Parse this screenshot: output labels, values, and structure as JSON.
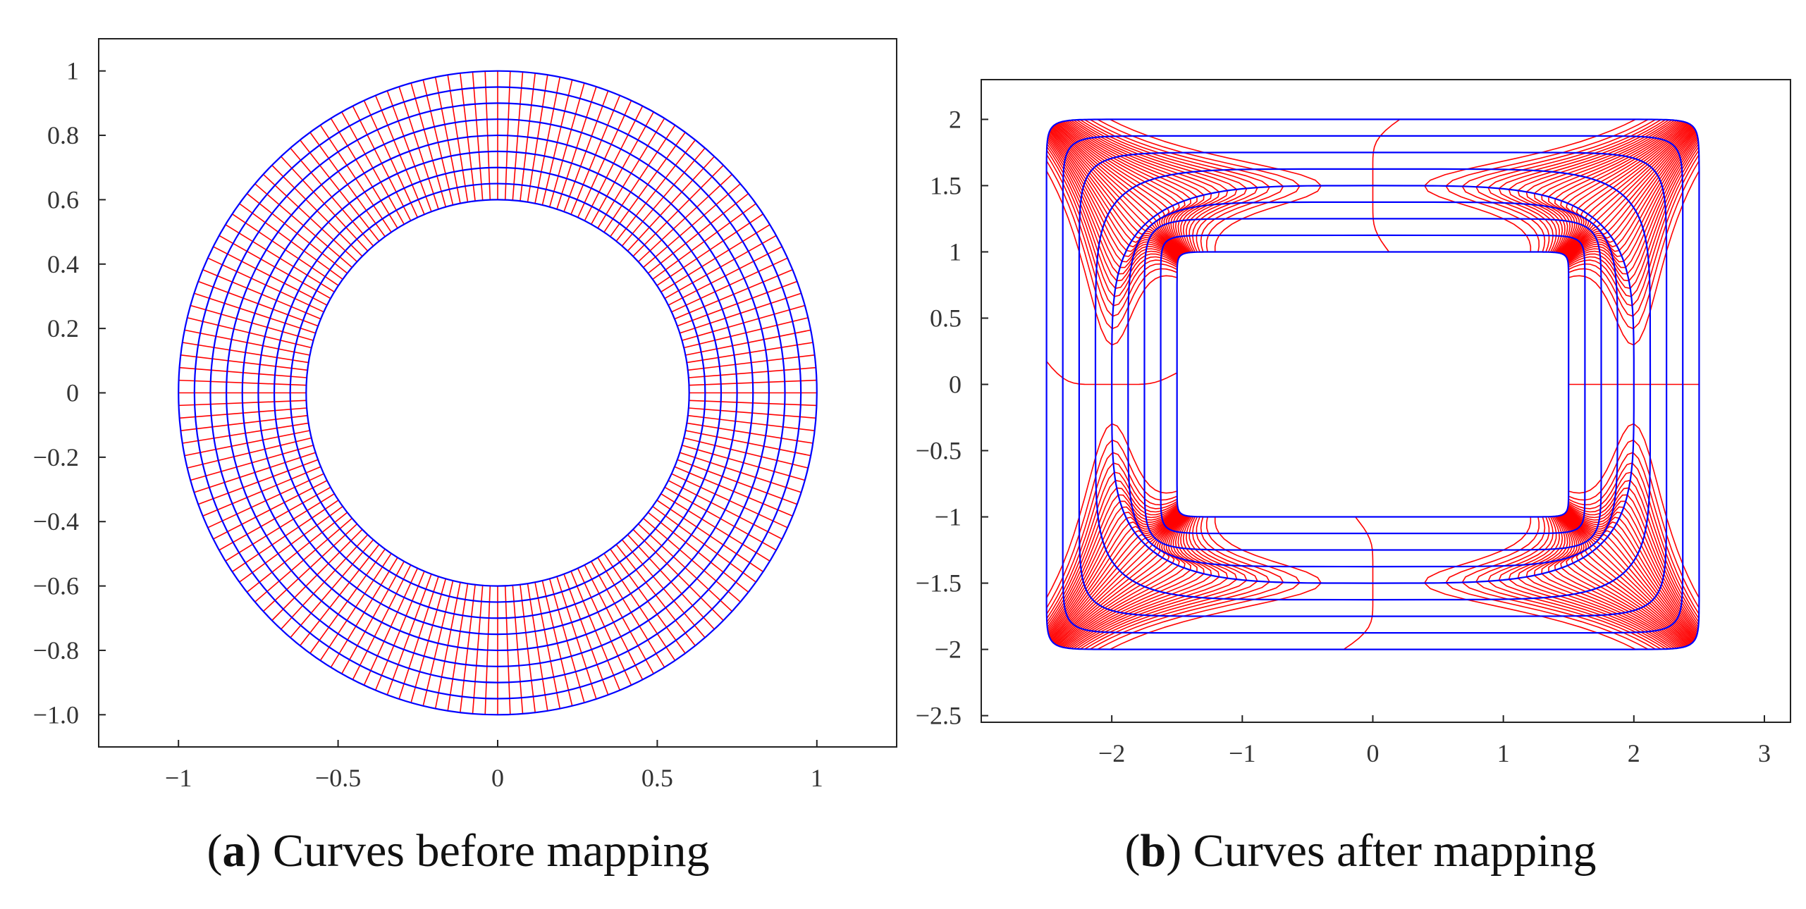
{
  "chart_data": [
    {
      "type": "line",
      "title": "Curves before mapping",
      "caption_letter": "a",
      "xlabel": "",
      "ylabel": "",
      "xlim": [
        -1.25,
        1.25
      ],
      "ylim": [
        -1.1,
        1.1
      ],
      "xticks": [
        -1,
        -0.5,
        0,
        0.5,
        1
      ],
      "xtick_labels": [
        "−1",
        "−0.5",
        "0",
        "0.5",
        "1"
      ],
      "yticks": [
        1,
        0.8,
        0.6,
        0.4,
        0.2,
        0,
        -0.2,
        -0.4,
        -0.6,
        -0.8,
        -1.0
      ],
      "ytick_labels": [
        "1",
        "0.8",
        "0.6",
        "0.4",
        "0.2",
        "0",
        "−0.2",
        "−0.4",
        "−0.6",
        "−0.8",
        "−1.0"
      ],
      "series": [
        {
          "name": "circular curves",
          "color": "#0000ff",
          "radii": [
            0.6,
            0.65,
            0.7,
            0.75,
            0.8,
            0.85,
            0.9,
            0.95,
            1.0
          ]
        },
        {
          "name": "radial lines",
          "color": "#ff0000",
          "count": 160,
          "r_inner": 0.6,
          "r_outer": 1.0
        }
      ],
      "grid": false
    },
    {
      "type": "line",
      "title": "Curves after mapping",
      "caption_letter": "b",
      "xlabel": "",
      "ylabel": "",
      "xlim": [
        -3.0,
        3.2
      ],
      "ylim": [
        -2.55,
        2.3
      ],
      "xticks": [
        -2,
        -1,
        0,
        1,
        2,
        3
      ],
      "xtick_labels": [
        "−2",
        "−1",
        "0",
        "1",
        "2",
        "3"
      ],
      "yticks": [
        2,
        1.5,
        1,
        0.5,
        0,
        -0.5,
        -1,
        -1.5,
        -2,
        -2.5
      ],
      "ytick_labels": [
        "2",
        "1.5",
        "1",
        "0.5",
        "0",
        "−0.5",
        "−1",
        "−1.5",
        "−2",
        "−2.5"
      ],
      "series": [
        {
          "name": "mapped circular curves",
          "color": "#0000ff",
          "inner_half_size": [
            1.5,
            1.0
          ],
          "outer_half_size": [
            2.5,
            2.0
          ],
          "levels": 9
        },
        {
          "name": "mapped radial lines",
          "color": "#ff0000",
          "count": 160
        }
      ],
      "grid": false
    }
  ]
}
